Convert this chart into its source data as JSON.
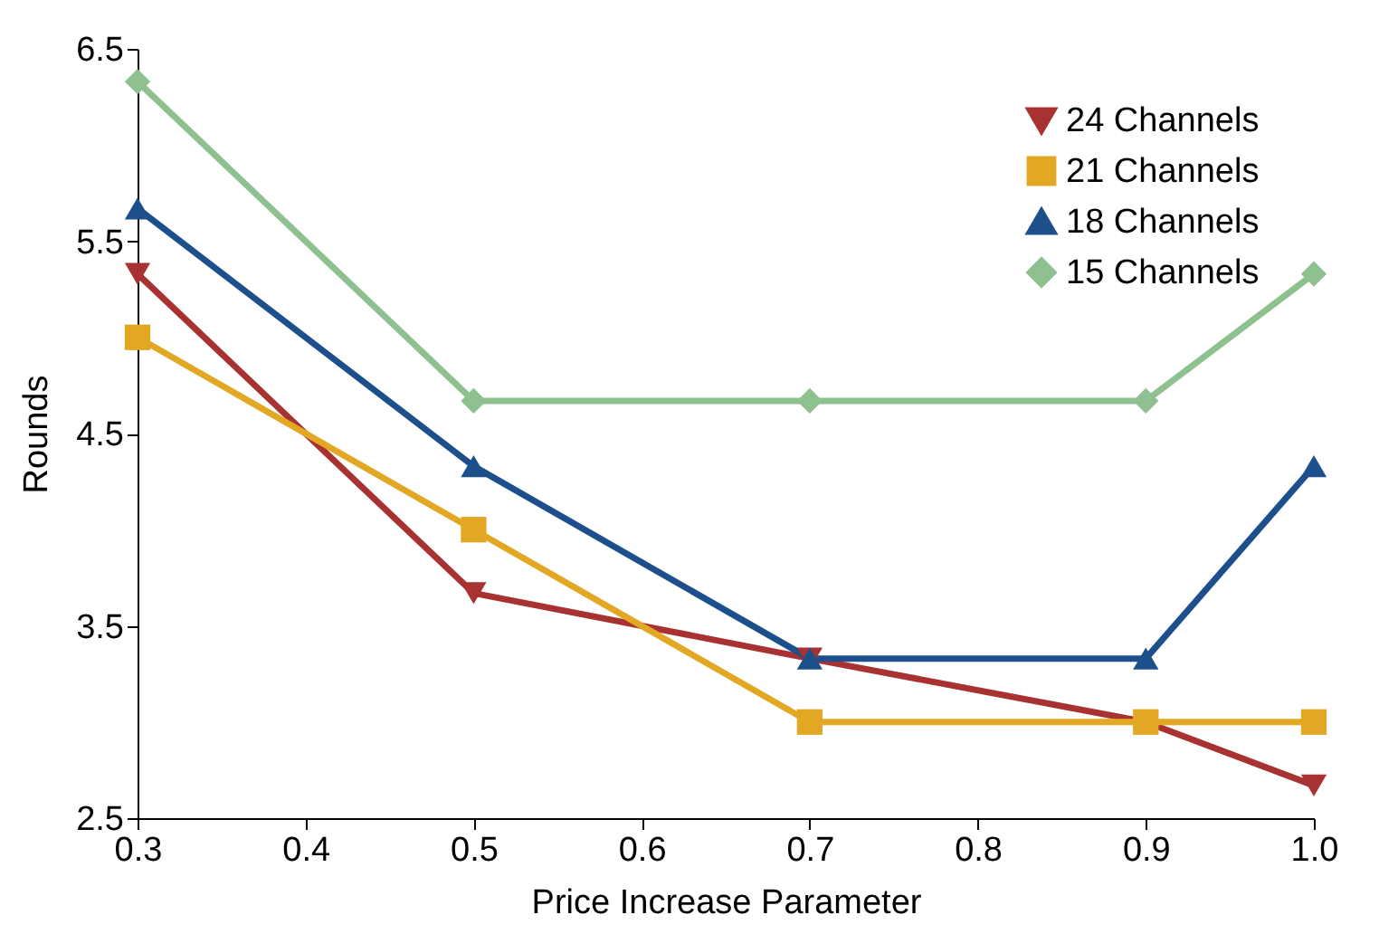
{
  "chart_data": {
    "type": "line",
    "xlabel": "Price Increase Parameter",
    "ylabel": "Rounds",
    "x": [
      0.3,
      0.5,
      0.7,
      0.9,
      1.0
    ],
    "series": [
      {
        "name": "24 Channels",
        "color": "#a83232",
        "marker": "triangle-down",
        "values": [
          5.33,
          3.67,
          3.33,
          3.0,
          2.67
        ]
      },
      {
        "name": "21 Channels",
        "color": "#e2a824",
        "marker": "square",
        "values": [
          5.0,
          4.0,
          3.0,
          3.0,
          3.0
        ]
      },
      {
        "name": "18 Channels",
        "color": "#1c4f8c",
        "marker": "triangle",
        "values": [
          5.67,
          4.33,
          3.33,
          3.33,
          4.33
        ]
      },
      {
        "name": "15 Channels",
        "color": "#8fc08f",
        "marker": "diamond",
        "values": [
          6.33,
          4.67,
          4.67,
          4.67,
          5.33
        ]
      }
    ],
    "xlim": [
      0.3,
      1.0
    ],
    "xticks": [
      0.3,
      0.4,
      0.5,
      0.6,
      0.7,
      0.8,
      0.9,
      {
        "value": 1.0,
        "label": "1.0"
      }
    ],
    "ylim": [
      2.5,
      6.5
    ],
    "yticks": [
      2.5,
      3.5,
      4.5,
      5.5,
      6.5
    ],
    "grid": false,
    "legend": "top right",
    "line_style": "solid"
  }
}
